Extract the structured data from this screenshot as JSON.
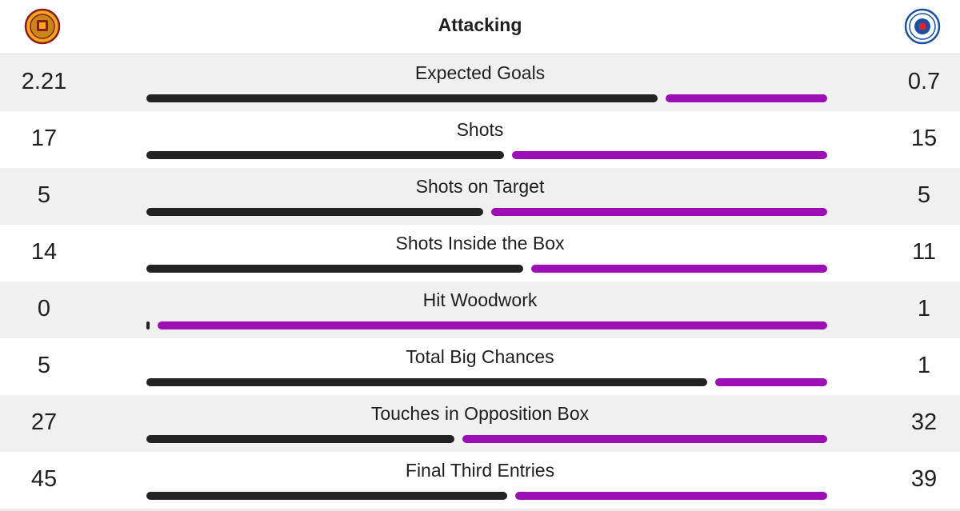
{
  "header": {
    "title": "Attacking",
    "home_crest_icon": "motherwell-crest-icon",
    "away_crest_icon": "rangers-crest-icon"
  },
  "colors": {
    "home": "#222222",
    "away": "#9c0fb5",
    "row_shade": "#f0f0f0"
  },
  "stats": [
    {
      "label": "Expected Goals",
      "home": "2.21",
      "away": "0.7",
      "home_value": 2.21,
      "away_value": 0.7
    },
    {
      "label": "Shots",
      "home": "17",
      "away": "15",
      "home_value": 17,
      "away_value": 15
    },
    {
      "label": "Shots on Target",
      "home": "5",
      "away": "5",
      "home_value": 5,
      "away_value": 5
    },
    {
      "label": "Shots Inside the Box",
      "home": "14",
      "away": "11",
      "home_value": 14,
      "away_value": 11
    },
    {
      "label": "Hit Woodwork",
      "home": "0",
      "away": "1",
      "home_value": 0,
      "away_value": 1
    },
    {
      "label": "Total Big Chances",
      "home": "5",
      "away": "1",
      "home_value": 5,
      "away_value": 1
    },
    {
      "label": "Touches in Opposition Box",
      "home": "27",
      "away": "32",
      "home_value": 27,
      "away_value": 32
    },
    {
      "label": "Final Third Entries",
      "home": "45",
      "away": "39",
      "home_value": 45,
      "away_value": 39
    }
  ]
}
